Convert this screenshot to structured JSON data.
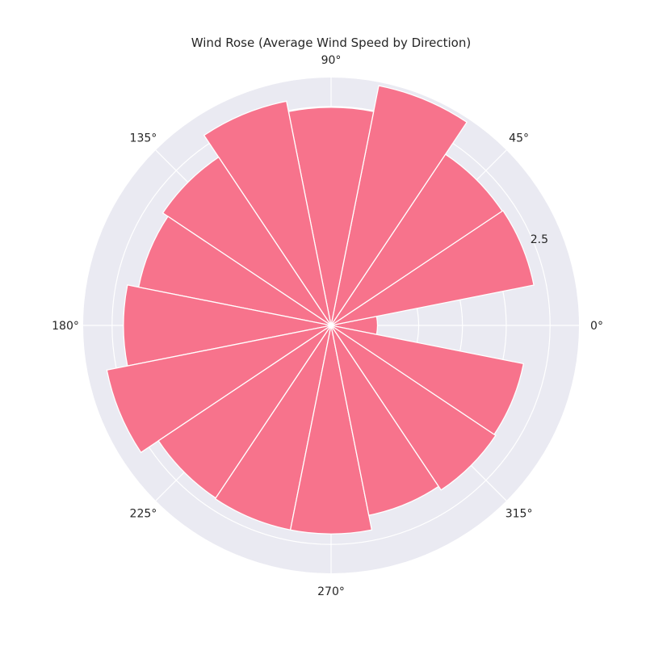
{
  "chart_data": {
    "type": "bar",
    "subtype": "polar",
    "title": "Wind Rose (Average Wind Speed by Direction)",
    "directions_deg": [
      0,
      22.5,
      45,
      67.5,
      90,
      112.5,
      135,
      157.5,
      180,
      202.5,
      225,
      247.5,
      270,
      292.5,
      315,
      337.5
    ],
    "values": [
      0.53,
      2.36,
      2.35,
      2.79,
      2.49,
      2.61,
      2.31,
      2.24,
      2.37,
      2.61,
      2.37,
      2.38,
      2.38,
      2.21,
      2.26,
      2.24
    ],
    "r_ticks": [
      0.5,
      1.0,
      1.5,
      2.0,
      2.5
    ],
    "r_tick_labels": [
      "",
      "",
      "",
      "",
      "2.5"
    ],
    "rlim": [
      0,
      2.83
    ],
    "theta_ticks": [
      0,
      45,
      90,
      135,
      180,
      225,
      270,
      315
    ],
    "theta_tick_labels": [
      "0°",
      "45°",
      "90°",
      "135°",
      "180°",
      "225°",
      "270°",
      "315°"
    ],
    "grid": true,
    "colors": {
      "bar": "#f7738c",
      "background": "#eaeaf2",
      "grid": "#ffffff",
      "edge": "#ffffff"
    }
  }
}
